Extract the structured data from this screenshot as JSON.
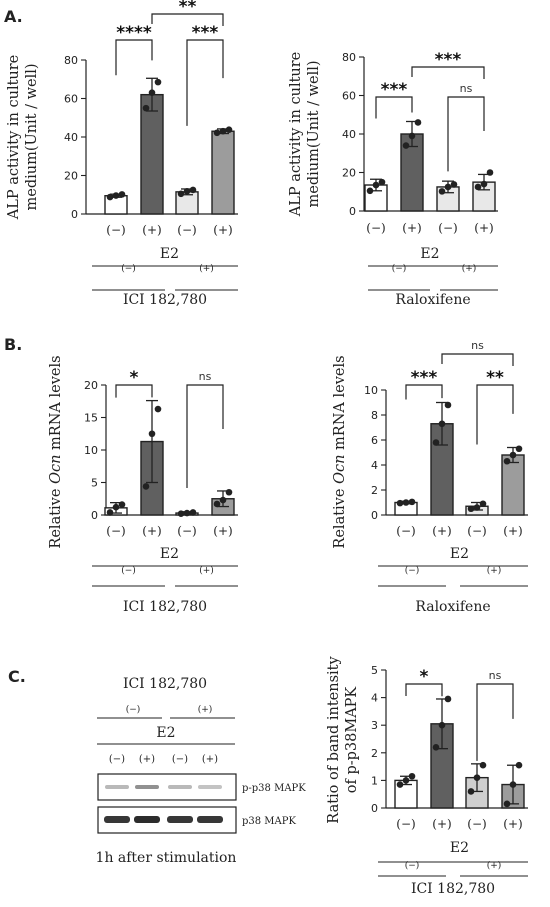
{
  "panel_labels": [
    "A.",
    "B.",
    "C."
  ],
  "chart_data": [
    {
      "id": "chartA1",
      "type": "bar",
      "ylabel_lines": [
        "ALP activity in culture",
        "medium(Unit / well)"
      ],
      "ylim": [
        0,
        80
      ],
      "yticks": [
        0,
        20,
        40,
        60,
        80
      ],
      "categories": [
        "(−)",
        "(+)",
        "(−)",
        "(+)"
      ],
      "values": [
        9.5,
        62,
        11.5,
        43
      ],
      "errors": [
        0.8,
        8.5,
        1.5,
        1.2
      ],
      "points": [
        [
          8.8,
          9.6,
          10.2
        ],
        [
          55,
          63,
          68.5
        ],
        [
          10.5,
          11.8,
          12.5
        ],
        [
          42.2,
          43,
          43.8
        ]
      ],
      "fills": [
        "#ffffff",
        "#606060",
        "#e8e8e8",
        "#9c9c9c"
      ],
      "comparisons": [
        {
          "from": 0,
          "to": 1,
          "label": "****"
        },
        {
          "from": 2,
          "to": 3,
          "label": "***"
        },
        {
          "from": 1,
          "to": 3,
          "label": "**"
        }
      ],
      "factor_label": "E2",
      "subgroup_labels": [
        "(−)",
        "(+)"
      ],
      "group_label": "ICI 182,780"
    },
    {
      "id": "chartA2",
      "type": "bar",
      "ylabel_lines": [
        "ALP activity in culture",
        "medium(Unit / well)"
      ],
      "ylim": [
        0,
        80
      ],
      "yticks": [
        0,
        20,
        40,
        60,
        80
      ],
      "categories": [
        "(−)",
        "(+)",
        "(−)",
        "(+)"
      ],
      "values": [
        13.5,
        40,
        12.5,
        15
      ],
      "errors": [
        3,
        6.5,
        3,
        4
      ],
      "points": [
        [
          10.5,
          13.5,
          15
        ],
        [
          34,
          39,
          46
        ],
        [
          10.2,
          12.5,
          13.8
        ],
        [
          12.5,
          14,
          20
        ]
      ],
      "fills": [
        "#ffffff",
        "#606060",
        "#e8e8e8",
        "#e8e8e8"
      ],
      "comparisons": [
        {
          "from": 0,
          "to": 1,
          "label": "***"
        },
        {
          "from": 2,
          "to": 3,
          "label": "ns"
        },
        {
          "from": 1,
          "to": 3,
          "label": "***"
        }
      ],
      "factor_label": "E2",
      "subgroup_labels": [
        "(−)",
        "(+)"
      ],
      "group_label": "Raloxifene"
    },
    {
      "id": "chartB1",
      "type": "bar",
      "ylabel_lines": [
        "Relative ",
        "Ocn",
        " mRNA levels"
      ],
      "ylim": [
        0,
        20
      ],
      "yticks": [
        0,
        5,
        10,
        15,
        20
      ],
      "categories": [
        "(−)",
        "(+)",
        "(−)",
        "(+)"
      ],
      "values": [
        1.1,
        11.3,
        0.3,
        2.5
      ],
      "errors": [
        0.8,
        6.3,
        0.2,
        1.2
      ],
      "points": [
        [
          0.4,
          1.2,
          1.6
        ],
        [
          4.4,
          12.5,
          16.3
        ],
        [
          0.2,
          0.3,
          0.4
        ],
        [
          1.7,
          2.3,
          3.5
        ]
      ],
      "fills": [
        "#ffffff",
        "#606060",
        "#e8e8e8",
        "#9c9c9c"
      ],
      "comparisons": [
        {
          "from": 0,
          "to": 1,
          "label": "*"
        },
        {
          "from": 2,
          "to": 3,
          "label": "ns"
        }
      ],
      "factor_label": "E2",
      "subgroup_labels": [
        "(−)",
        "(+)"
      ],
      "group_label": "ICI 182,780"
    },
    {
      "id": "chartB2",
      "type": "bar",
      "ylabel_lines": [
        "Relative ",
        "Ocn",
        " mRNA levels"
      ],
      "ylim": [
        0,
        10
      ],
      "yticks": [
        0,
        2,
        4,
        6,
        8,
        10
      ],
      "categories": [
        "(−)",
        "(+)",
        "(−)",
        "(+)"
      ],
      "values": [
        1.0,
        7.3,
        0.7,
        4.8
      ],
      "errors": [
        0.1,
        1.7,
        0.3,
        0.6
      ],
      "points": [
        [
          0.95,
          1.0,
          1.05
        ],
        [
          5.8,
          7.3,
          8.8
        ],
        [
          0.5,
          0.6,
          0.9
        ],
        [
          4.3,
          4.8,
          5.3
        ]
      ],
      "fills": [
        "#ffffff",
        "#606060",
        "#e8e8e8",
        "#9c9c9c"
      ],
      "comparisons": [
        {
          "from": 0,
          "to": 1,
          "label": "***"
        },
        {
          "from": 2,
          "to": 3,
          "label": "**"
        },
        {
          "from": 1,
          "to": 3,
          "label": "ns"
        }
      ],
      "factor_label": "E2",
      "subgroup_labels": [
        "(−)",
        "(+)"
      ],
      "group_label": "Raloxifene"
    },
    {
      "id": "chartC",
      "type": "bar",
      "ylabel_lines": [
        "Ratio of band intensity",
        "of p-p38MAPK"
      ],
      "ylim": [
        0,
        5
      ],
      "yticks": [
        0,
        1,
        2,
        3,
        4,
        5
      ],
      "categories": [
        "(−)",
        "(+)",
        "(−)",
        "(+)"
      ],
      "values": [
        1.0,
        3.05,
        1.1,
        0.85
      ],
      "errors": [
        0.15,
        0.9,
        0.5,
        0.7
      ],
      "points": [
        [
          0.85,
          1.0,
          1.15
        ],
        [
          2.2,
          3.0,
          3.95
        ],
        [
          0.6,
          1.1,
          1.55
        ],
        [
          0.15,
          0.85,
          1.55
        ]
      ],
      "fills": [
        "#ffffff",
        "#606060",
        "#cfcfcf",
        "#9c9c9c"
      ],
      "comparisons": [
        {
          "from": 0,
          "to": 1,
          "label": "*"
        },
        {
          "from": 2,
          "to": 3,
          "label": "ns"
        }
      ],
      "factor_label": "E2",
      "subgroup_labels": [
        "(−)",
        "(+)"
      ],
      "group_label": "ICI 182,780"
    }
  ],
  "blot": {
    "title": "ICI 182,780",
    "subgroup_labels": [
      "(−)",
      "(+)"
    ],
    "factor_label": "E2",
    "lane_labels": [
      "(−)",
      "(+)",
      "(−)",
      "(+)"
    ],
    "band_labels": [
      "p-p38 MAPK",
      "p38 MAPK"
    ],
    "phospho_band_intensity": [
      0.35,
      0.55,
      0.35,
      0.3
    ],
    "total_band_intensity": [
      0.85,
      0.9,
      0.85,
      0.85
    ],
    "caption": "1h after stimulation"
  }
}
